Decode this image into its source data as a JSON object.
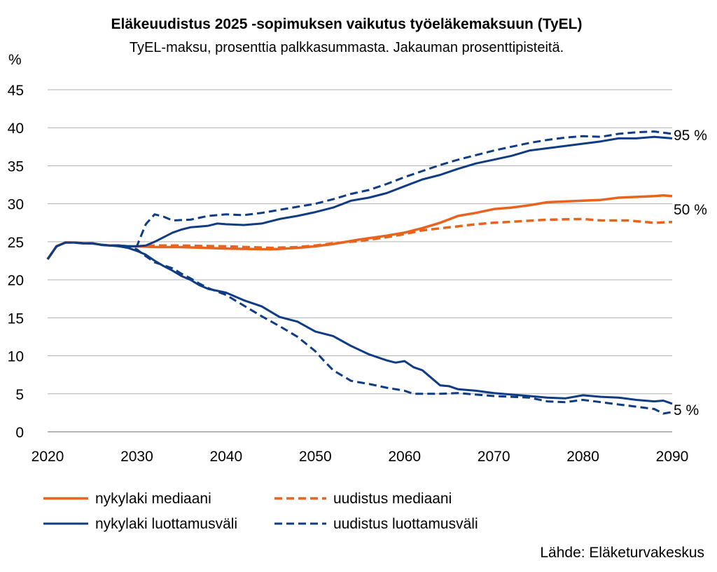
{
  "chart_data": {
    "type": "line",
    "title": "Eläkeuudistus 2025 -sopimuksen vaikutus työeläkemaksuun (TyEL)",
    "subtitle": "TyEL-maksu, prosenttia palkkasummasta. Jakauman prosenttipisteitä.",
    "ylabel": "%",
    "xlabel": "",
    "xlim": [
      2020,
      2090
    ],
    "ylim": [
      0,
      45
    ],
    "x_ticks": [
      2020,
      2030,
      2040,
      2050,
      2060,
      2070,
      2080,
      2090
    ],
    "y_ticks": [
      0,
      5,
      10,
      15,
      20,
      25,
      30,
      35,
      40,
      45
    ],
    "grid": "horizontal",
    "legend_position": "bottom",
    "end_labels": [
      "95 %",
      "50 %",
      "5 %"
    ],
    "source": "Lähde: Eläketurvakeskus",
    "colors": {
      "median": "#e8641e",
      "interval": "#0f3c82"
    },
    "series": [
      {
        "name": "nykylaki mediaani",
        "style": "solid",
        "color": "#e8641e",
        "points": [
          [
            2020,
            22.7
          ],
          [
            2021,
            24.4
          ],
          [
            2022,
            24.9
          ],
          [
            2023,
            24.9
          ],
          [
            2024,
            24.8
          ],
          [
            2025,
            24.8
          ],
          [
            2026,
            24.6
          ],
          [
            2027,
            24.5
          ],
          [
            2028,
            24.5
          ],
          [
            2029,
            24.4
          ],
          [
            2030,
            24.4
          ],
          [
            2032,
            24.3
          ],
          [
            2035,
            24.3
          ],
          [
            2040,
            24.1
          ],
          [
            2045,
            24.0
          ],
          [
            2048,
            24.2
          ],
          [
            2050,
            24.4
          ],
          [
            2052,
            24.7
          ],
          [
            2055,
            25.3
          ],
          [
            2058,
            25.8
          ],
          [
            2060,
            26.2
          ],
          [
            2062,
            26.8
          ],
          [
            2064,
            27.5
          ],
          [
            2066,
            28.4
          ],
          [
            2068,
            28.8
          ],
          [
            2070,
            29.3
          ],
          [
            2072,
            29.5
          ],
          [
            2074,
            29.8
          ],
          [
            2076,
            30.2
          ],
          [
            2078,
            30.3
          ],
          [
            2080,
            30.4
          ],
          [
            2082,
            30.5
          ],
          [
            2084,
            30.8
          ],
          [
            2086,
            30.9
          ],
          [
            2088,
            31.0
          ],
          [
            2089,
            31.1
          ],
          [
            2090,
            31.0
          ]
        ]
      },
      {
        "name": "uudistus mediaani",
        "style": "dashed",
        "color": "#e8641e",
        "points": [
          [
            2020,
            22.7
          ],
          [
            2021,
            24.4
          ],
          [
            2022,
            24.9
          ],
          [
            2023,
            24.9
          ],
          [
            2024,
            24.8
          ],
          [
            2025,
            24.8
          ],
          [
            2026,
            24.6
          ],
          [
            2027,
            24.5
          ],
          [
            2028,
            24.5
          ],
          [
            2029,
            24.4
          ],
          [
            2030,
            24.4
          ],
          [
            2032,
            24.5
          ],
          [
            2035,
            24.5
          ],
          [
            2040,
            24.4
          ],
          [
            2045,
            24.2
          ],
          [
            2048,
            24.3
          ],
          [
            2050,
            24.5
          ],
          [
            2052,
            24.8
          ],
          [
            2055,
            25.1
          ],
          [
            2058,
            25.6
          ],
          [
            2060,
            26.0
          ],
          [
            2062,
            26.5
          ],
          [
            2065,
            26.9
          ],
          [
            2068,
            27.3
          ],
          [
            2070,
            27.5
          ],
          [
            2073,
            27.7
          ],
          [
            2076,
            27.9
          ],
          [
            2080,
            28.0
          ],
          [
            2082,
            27.8
          ],
          [
            2085,
            27.8
          ],
          [
            2088,
            27.5
          ],
          [
            2090,
            27.6
          ]
        ]
      },
      {
        "name": "nykylaki luottamusväli",
        "style": "solid",
        "color": "#0f3c82",
        "points": [
          [
            2020,
            22.7
          ],
          [
            2021,
            24.4
          ],
          [
            2022,
            24.9
          ],
          [
            2023,
            24.9
          ],
          [
            2024,
            24.8
          ],
          [
            2025,
            24.8
          ],
          [
            2026,
            24.6
          ],
          [
            2027,
            24.5
          ],
          [
            2028,
            24.5
          ],
          [
            2029,
            24.4
          ],
          [
            2030,
            24.4
          ],
          [
            2031,
            24.5
          ],
          [
            2032,
            25.0
          ],
          [
            2033,
            25.6
          ],
          [
            2034,
            26.2
          ],
          [
            2035,
            26.6
          ],
          [
            2036,
            26.9
          ],
          [
            2037,
            27.0
          ],
          [
            2038,
            27.1
          ],
          [
            2039,
            27.4
          ],
          [
            2040,
            27.3
          ],
          [
            2042,
            27.2
          ],
          [
            2044,
            27.4
          ],
          [
            2046,
            28.0
          ],
          [
            2048,
            28.4
          ],
          [
            2050,
            28.9
          ],
          [
            2052,
            29.5
          ],
          [
            2054,
            30.4
          ],
          [
            2056,
            30.8
          ],
          [
            2058,
            31.4
          ],
          [
            2060,
            32.3
          ],
          [
            2062,
            33.2
          ],
          [
            2064,
            33.8
          ],
          [
            2066,
            34.6
          ],
          [
            2068,
            35.3
          ],
          [
            2070,
            35.8
          ],
          [
            2072,
            36.3
          ],
          [
            2074,
            37.0
          ],
          [
            2076,
            37.3
          ],
          [
            2078,
            37.6
          ],
          [
            2080,
            37.9
          ],
          [
            2082,
            38.2
          ],
          [
            2084,
            38.6
          ],
          [
            2086,
            38.6
          ],
          [
            2088,
            38.8
          ],
          [
            2090,
            38.6
          ]
        ]
      },
      {
        "name": "nykylaki luottamusväli",
        "style": "solid",
        "color": "#0f3c82",
        "points": [
          [
            2020,
            22.7
          ],
          [
            2021,
            24.4
          ],
          [
            2022,
            24.9
          ],
          [
            2023,
            24.9
          ],
          [
            2024,
            24.8
          ],
          [
            2025,
            24.8
          ],
          [
            2026,
            24.6
          ],
          [
            2027,
            24.5
          ],
          [
            2028,
            24.4
          ],
          [
            2029,
            24.2
          ],
          [
            2030,
            23.8
          ],
          [
            2031,
            23.3
          ],
          [
            2032,
            22.5
          ],
          [
            2033,
            21.8
          ],
          [
            2034,
            21.2
          ],
          [
            2035,
            20.5
          ],
          [
            2036,
            20.0
          ],
          [
            2037,
            19.3
          ],
          [
            2038,
            18.8
          ],
          [
            2040,
            18.3
          ],
          [
            2042,
            17.3
          ],
          [
            2044,
            16.5
          ],
          [
            2046,
            15.1
          ],
          [
            2048,
            14.5
          ],
          [
            2050,
            13.2
          ],
          [
            2052,
            12.6
          ],
          [
            2054,
            11.3
          ],
          [
            2056,
            10.2
          ],
          [
            2058,
            9.4
          ],
          [
            2059,
            9.1
          ],
          [
            2060,
            9.3
          ],
          [
            2061,
            8.5
          ],
          [
            2062,
            8.1
          ],
          [
            2064,
            6.1
          ],
          [
            2065,
            6.0
          ],
          [
            2066,
            5.6
          ],
          [
            2068,
            5.4
          ],
          [
            2070,
            5.1
          ],
          [
            2072,
            4.9
          ],
          [
            2074,
            4.7
          ],
          [
            2076,
            4.5
          ],
          [
            2078,
            4.4
          ],
          [
            2080,
            4.8
          ],
          [
            2082,
            4.6
          ],
          [
            2084,
            4.5
          ],
          [
            2086,
            4.2
          ],
          [
            2088,
            4.0
          ],
          [
            2089,
            4.1
          ],
          [
            2090,
            3.7
          ]
        ]
      },
      {
        "name": "uudistus luottamusväli",
        "style": "dashed",
        "color": "#0f3c82",
        "points": [
          [
            2020,
            22.7
          ],
          [
            2021,
            24.4
          ],
          [
            2022,
            24.9
          ],
          [
            2023,
            24.9
          ],
          [
            2024,
            24.8
          ],
          [
            2025,
            24.8
          ],
          [
            2026,
            24.6
          ],
          [
            2027,
            24.5
          ],
          [
            2028,
            24.5
          ],
          [
            2029,
            24.4
          ],
          [
            2030,
            24.4
          ],
          [
            2031,
            27.3
          ],
          [
            2032,
            28.6
          ],
          [
            2033,
            28.3
          ],
          [
            2034,
            27.8
          ],
          [
            2036,
            27.9
          ],
          [
            2038,
            28.4
          ],
          [
            2040,
            28.6
          ],
          [
            2042,
            28.5
          ],
          [
            2044,
            28.8
          ],
          [
            2046,
            29.2
          ],
          [
            2048,
            29.6
          ],
          [
            2050,
            30.0
          ],
          [
            2052,
            30.6
          ],
          [
            2054,
            31.3
          ],
          [
            2056,
            31.8
          ],
          [
            2058,
            32.6
          ],
          [
            2060,
            33.5
          ],
          [
            2062,
            34.3
          ],
          [
            2064,
            35.1
          ],
          [
            2066,
            35.8
          ],
          [
            2068,
            36.4
          ],
          [
            2070,
            37.0
          ],
          [
            2072,
            37.5
          ],
          [
            2074,
            38.0
          ],
          [
            2076,
            38.4
          ],
          [
            2078,
            38.7
          ],
          [
            2080,
            38.9
          ],
          [
            2082,
            38.8
          ],
          [
            2084,
            39.2
          ],
          [
            2086,
            39.4
          ],
          [
            2088,
            39.5
          ],
          [
            2090,
            39.2
          ]
        ]
      },
      {
        "name": "uudistus luottamusväli",
        "style": "dashed",
        "color": "#0f3c82",
        "points": [
          [
            2020,
            22.7
          ],
          [
            2021,
            24.4
          ],
          [
            2022,
            24.9
          ],
          [
            2023,
            24.9
          ],
          [
            2024,
            24.8
          ],
          [
            2025,
            24.8
          ],
          [
            2026,
            24.6
          ],
          [
            2027,
            24.5
          ],
          [
            2028,
            24.5
          ],
          [
            2029,
            24.4
          ],
          [
            2030,
            24.0
          ],
          [
            2031,
            23.1
          ],
          [
            2032,
            22.3
          ],
          [
            2033,
            21.9
          ],
          [
            2034,
            21.5
          ],
          [
            2035,
            20.8
          ],
          [
            2036,
            20.2
          ],
          [
            2037,
            19.5
          ],
          [
            2038,
            18.9
          ],
          [
            2040,
            18.0
          ],
          [
            2042,
            16.6
          ],
          [
            2044,
            15.2
          ],
          [
            2046,
            13.9
          ],
          [
            2048,
            12.5
          ],
          [
            2050,
            10.6
          ],
          [
            2051,
            9.3
          ],
          [
            2052,
            8.1
          ],
          [
            2054,
            6.7
          ],
          [
            2056,
            6.3
          ],
          [
            2058,
            5.8
          ],
          [
            2060,
            5.4
          ],
          [
            2061,
            5.0
          ],
          [
            2062,
            5.0
          ],
          [
            2064,
            5.0
          ],
          [
            2066,
            5.1
          ],
          [
            2068,
            4.9
          ],
          [
            2070,
            4.7
          ],
          [
            2072,
            4.6
          ],
          [
            2074,
            4.5
          ],
          [
            2076,
            4.0
          ],
          [
            2078,
            3.9
          ],
          [
            2080,
            4.2
          ],
          [
            2082,
            3.9
          ],
          [
            2084,
            3.6
          ],
          [
            2086,
            3.3
          ],
          [
            2088,
            3.0
          ],
          [
            2089,
            2.4
          ],
          [
            2090,
            2.6
          ]
        ]
      }
    ]
  },
  "legend": [
    {
      "label": "nykylaki mediaani",
      "color": "#e8641e",
      "dashed": false
    },
    {
      "label": "uudistus mediaani",
      "color": "#e8641e",
      "dashed": true
    },
    {
      "label": "nykylaki luottamusväli",
      "color": "#0f3c82",
      "dashed": false
    },
    {
      "label": "uudistus luottamusväli",
      "color": "#0f3c82",
      "dashed": true
    }
  ]
}
